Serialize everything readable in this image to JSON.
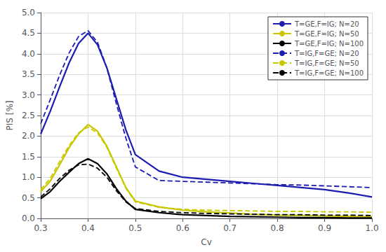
{
  "chart_data": {
    "type": "line",
    "xlabel": "Cv",
    "ylabel": "PIS [%]",
    "x": [
      0.3,
      0.32,
      0.34,
      0.36,
      0.38,
      0.4,
      0.42,
      0.44,
      0.46,
      0.48,
      0.5,
      0.55,
      0.6,
      0.65,
      0.7,
      0.75,
      0.8,
      0.85,
      0.9,
      0.95,
      1.0
    ],
    "series": [
      {
        "name": "T=GE,F=IG; N=20",
        "color": "#1C1CB0",
        "line_style": "solid",
        "values": [
          2.05,
          2.6,
          3.2,
          3.78,
          4.25,
          4.5,
          4.22,
          3.65,
          2.9,
          2.15,
          1.55,
          1.15,
          1.0,
          0.95,
          0.9,
          0.85,
          0.8,
          0.75,
          0.7,
          0.62,
          0.52
        ]
      },
      {
        "name": "T=GE,F=IG; N=50",
        "color": "#C8C800",
        "line_style": "solid",
        "values": [
          0.65,
          0.9,
          1.3,
          1.72,
          2.05,
          2.28,
          2.12,
          1.75,
          1.25,
          0.75,
          0.42,
          0.28,
          0.2,
          0.16,
          0.13,
          0.1,
          0.08,
          0.07,
          0.06,
          0.05,
          0.04
        ]
      },
      {
        "name": "T=GE,F=IG; N=100",
        "color": "#000000",
        "line_style": "solid",
        "values": [
          0.48,
          0.65,
          0.9,
          1.12,
          1.33,
          1.45,
          1.33,
          1.08,
          0.72,
          0.42,
          0.22,
          0.14,
          0.09,
          0.07,
          0.05,
          0.04,
          0.03,
          0.02,
          0.02,
          0.01,
          0.01
        ]
      },
      {
        "name": "T=IG,F=GE; N=20",
        "color": "#1C1CB0",
        "line_style": "dashed",
        "values": [
          2.3,
          2.88,
          3.48,
          4.02,
          4.42,
          4.56,
          4.28,
          3.65,
          2.78,
          1.95,
          1.25,
          0.92,
          0.9,
          0.88,
          0.86,
          0.84,
          0.82,
          0.81,
          0.79,
          0.77,
          0.75
        ]
      },
      {
        "name": "T=IG,F=GE; N=50",
        "color": "#C8C800",
        "line_style": "dashed",
        "values": [
          0.7,
          0.97,
          1.38,
          1.77,
          2.08,
          2.22,
          2.08,
          1.72,
          1.22,
          0.73,
          0.4,
          0.27,
          0.22,
          0.2,
          0.19,
          0.18,
          0.17,
          0.17,
          0.16,
          0.16,
          0.15
        ]
      },
      {
        "name": "T=IG,F=GE; N=100",
        "color": "#000000",
        "line_style": "dashed",
        "values": [
          0.52,
          0.72,
          0.97,
          1.17,
          1.3,
          1.32,
          1.22,
          1.0,
          0.67,
          0.4,
          0.24,
          0.17,
          0.14,
          0.12,
          0.11,
          0.1,
          0.09,
          0.09,
          0.08,
          0.08,
          0.07
        ]
      }
    ],
    "xlim": [
      0.3,
      1.0
    ],
    "ylim": [
      0,
      5
    ],
    "xticks": [
      0.3,
      0.4,
      0.5,
      0.6,
      0.7,
      0.8,
      0.9,
      {
        "value": 1,
        "label": "1.0"
      }
    ],
    "yticks": [
      {
        "value": 0,
        "label": "0.0"
      },
      0.5,
      {
        "value": 1,
        "label": "1.0"
      },
      1.5,
      {
        "value": 2,
        "label": "2.0"
      },
      2.5,
      {
        "value": 3,
        "label": "3.0"
      },
      3.5,
      {
        "value": 4,
        "label": "4.0"
      },
      4.5,
      {
        "value": 5,
        "label": "5.0"
      }
    ],
    "grid": true,
    "legend": "upper right"
  }
}
